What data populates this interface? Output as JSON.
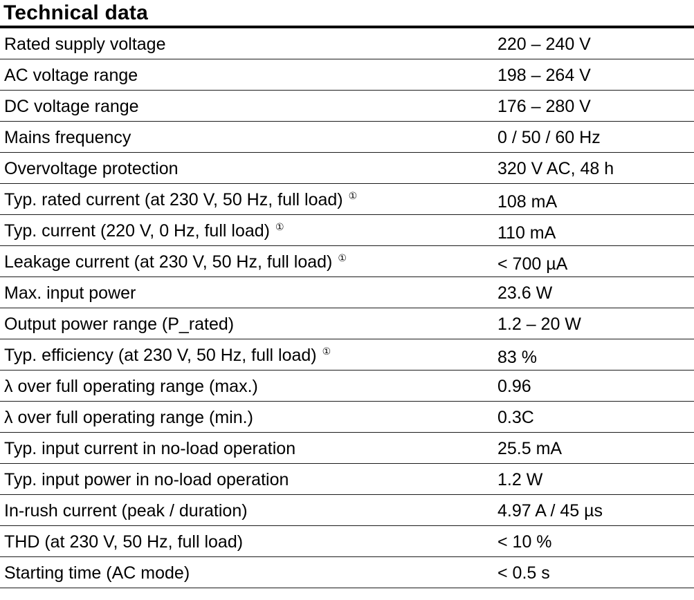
{
  "title": "Technical data",
  "footnote_mark": "①",
  "rows": [
    {
      "label": "Rated supply voltage",
      "value": "220 – 240 V"
    },
    {
      "label": "AC voltage range",
      "value": "198 – 264 V"
    },
    {
      "label": "DC voltage range",
      "value": "176 – 280 V"
    },
    {
      "label": "Mains frequency",
      "value": "0 / 50 / 60 Hz"
    },
    {
      "label": "Overvoltage protection",
      "value": "320 V AC, 48 h"
    },
    {
      "label": "Typ. rated current (at 230 V, 50 Hz, full load)",
      "value": "108 mA"
    },
    {
      "label": "Typ. current (220 V, 0 Hz, full load)",
      "value": "110 mA"
    },
    {
      "label": "Leakage current (at 230 V, 50 Hz, full load)",
      "value": "< 700 µA"
    },
    {
      "label": "Max. input power",
      "value": "23.6 W"
    },
    {
      "label": "Output power range (P_rated)",
      "value": "1.2 – 20 W"
    },
    {
      "label": "Typ. efficiency (at 230 V, 50 Hz, full load)",
      "value": "83 %"
    },
    {
      "label": "λ over full operating range (max.)",
      "value": "0.96"
    },
    {
      "label": "λ over full operating range (min.)",
      "value": "0.3C"
    },
    {
      "label": "Typ. input current in no-load operation",
      "value": "25.5 mA"
    },
    {
      "label": "Typ. input power in no-load operation",
      "value": "1.2 W"
    },
    {
      "label": "In-rush current (peak / duration)",
      "value": "4.97 A / 45 µs"
    },
    {
      "label": "THD (at 230 V, 50 Hz, full load)",
      "value": "< 10 %"
    },
    {
      "label": "Starting time (AC mode)",
      "value": "< 0.5 s"
    }
  ]
}
